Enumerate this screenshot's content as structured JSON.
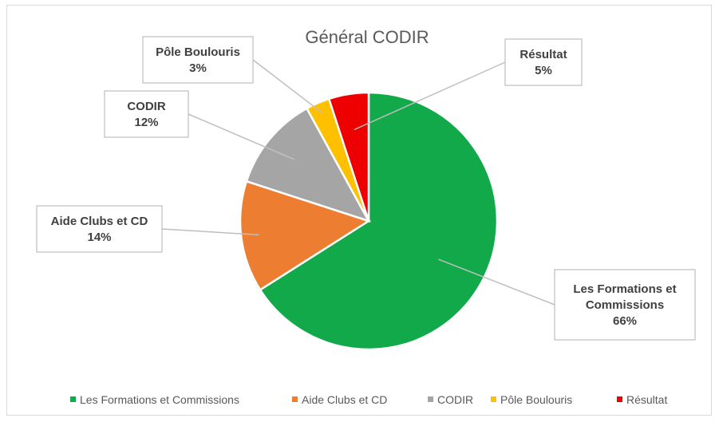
{
  "chart_data": {
    "type": "pie",
    "title": "Général CODIR",
    "categories": [
      "Les Formations et Commissions",
      "Aide Clubs et CD",
      "CODIR",
      "Pôle Boulouris",
      "Résultat"
    ],
    "values": [
      66,
      14,
      12,
      3,
      5
    ],
    "colors": [
      "#12a94a",
      "#ed7d31",
      "#a5a5a5",
      "#ffc000",
      "#ee0000"
    ],
    "data_labels": [
      {
        "name_lines": [
          "Les Formations et",
          "Commissions"
        ],
        "value": "66%"
      },
      {
        "name_lines": [
          "Aide Clubs et CD"
        ],
        "value": "14%"
      },
      {
        "name_lines": [
          "CODIR"
        ],
        "value": "12%"
      },
      {
        "name_lines": [
          "Pôle Boulouris"
        ],
        "value": "3%"
      },
      {
        "name_lines": [
          "Résultat"
        ],
        "value": "5%"
      }
    ],
    "legend": {
      "position": "bottom",
      "entries": [
        "Les Formations et Commissions",
        "Aide Clubs et CD",
        "CODIR",
        "Pôle Boulouris",
        "Résultat"
      ]
    },
    "start_angle": "12 o'clock",
    "direction": "clockwise"
  }
}
